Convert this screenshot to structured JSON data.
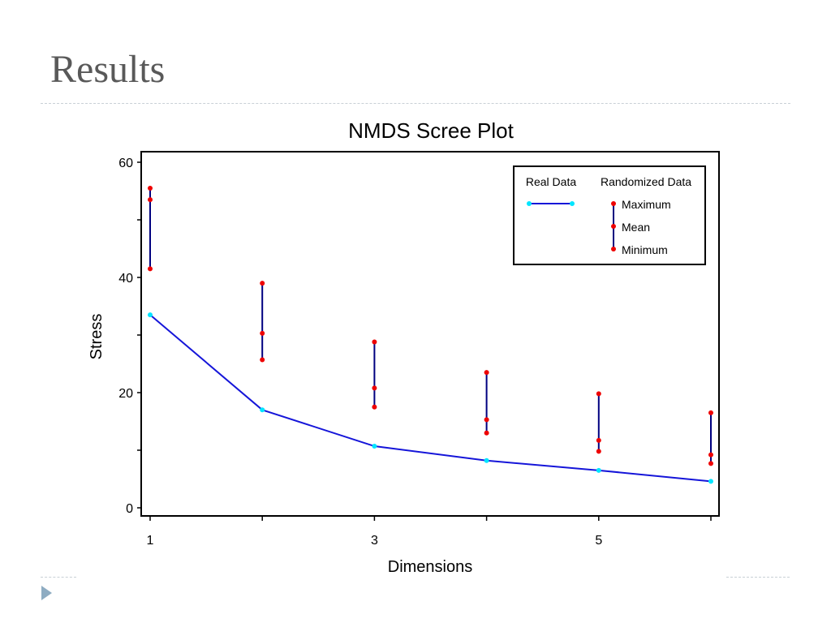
{
  "slide": {
    "title": "Results"
  },
  "chart_data": {
    "type": "line",
    "title": "NMDS Scree Plot",
    "xlabel": "Dimensions",
    "ylabel": "Stress",
    "xlim": [
      1,
      6
    ],
    "ylim": [
      0,
      60
    ],
    "x_ticks": [
      1,
      2,
      3,
      4,
      5,
      6
    ],
    "x_tick_labels": [
      "1",
      "",
      "3",
      "",
      "5",
      ""
    ],
    "y_ticks": [
      0,
      10,
      20,
      30,
      40,
      50,
      60
    ],
    "y_tick_labels": [
      "0",
      "",
      "20",
      "",
      "40",
      "",
      "60"
    ],
    "grid": false,
    "legend_position": "top-right",
    "series": [
      {
        "name": "Real Data",
        "x": [
          1,
          2,
          3,
          4,
          5,
          6
        ],
        "values": [
          33.5,
          17.0,
          10.7,
          8.2,
          6.5,
          4.6
        ],
        "color": "#1515d9",
        "marker_color": "#00e5ff"
      }
    ],
    "randomized": {
      "name": "Randomized Data",
      "x": [
        1,
        2,
        3,
        4,
        5,
        6
      ],
      "maximum": [
        55.5,
        39.0,
        28.8,
        23.5,
        19.8,
        16.5
      ],
      "mean": [
        53.5,
        30.3,
        20.8,
        15.3,
        11.7,
        9.2
      ],
      "minimum": [
        41.5,
        25.7,
        17.5,
        13.0,
        9.8,
        7.7
      ],
      "line_color": "#000080",
      "marker_color": "#ee0000"
    },
    "legend": {
      "real_header": "Real Data",
      "random_header": "Randomized Data",
      "maximum_label": "Maximum",
      "mean_label": "Mean",
      "minimum_label": "Minimum"
    }
  }
}
